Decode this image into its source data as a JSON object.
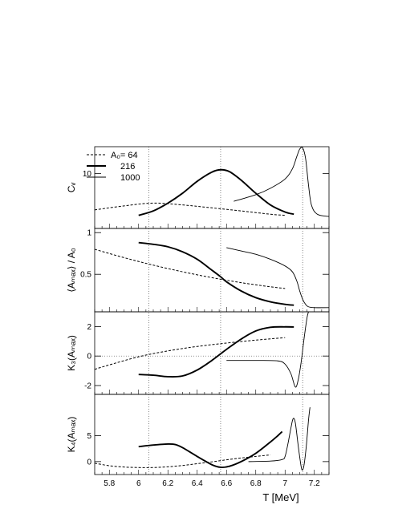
{
  "chart_data": {
    "type": "line",
    "x_axis": {
      "label": "T [MeV]",
      "range": [
        5.7,
        7.3
      ],
      "ticks": [
        5.8,
        6.0,
        6.2,
        6.4,
        6.6,
        6.8,
        7.0,
        7.2
      ],
      "tick_labels": [
        "5.8",
        "6",
        "6.2",
        "6.4",
        "6.6",
        "6.8",
        "7",
        "7.2"
      ]
    },
    "vertical_guides": [
      6.07,
      6.56,
      7.12
    ],
    "legend": {
      "placement": "top-left",
      "entries": [
        {
          "label": "A₀= 64",
          "style": "dashed",
          "series": "64"
        },
        {
          "label": "216",
          "style": "thick",
          "series": "216"
        },
        {
          "label": "1000",
          "style": "thin",
          "series": "1000"
        }
      ]
    },
    "panels": [
      {
        "ylabel": "Cᵥ",
        "yrange": [
          3.4,
          17
        ],
        "yscale": "log",
        "ticks": [
          10
        ],
        "tick_labels": [
          "10"
        ],
        "zero_line": false,
        "series": [
          {
            "name": "64",
            "style": "dashed",
            "points": [
              [
                5.7,
                4.9
              ],
              [
                5.9,
                5.3
              ],
              [
                6.1,
                5.6
              ],
              [
                6.3,
                5.4
              ],
              [
                6.5,
                5.1
              ],
              [
                6.7,
                4.8
              ],
              [
                6.9,
                4.5
              ],
              [
                7.0,
                4.4
              ]
            ]
          },
          {
            "name": "216",
            "style": "thick",
            "points": [
              [
                6.0,
                4.4
              ],
              [
                6.1,
                4.8
              ],
              [
                6.2,
                5.6
              ],
              [
                6.3,
                6.8
              ],
              [
                6.4,
                8.6
              ],
              [
                6.5,
                10.3
              ],
              [
                6.56,
                10.8
              ],
              [
                6.62,
                10.4
              ],
              [
                6.7,
                8.8
              ],
              [
                6.8,
                6.8
              ],
              [
                6.9,
                5.4
              ],
              [
                7.0,
                4.7
              ],
              [
                7.06,
                4.5
              ]
            ]
          },
          {
            "name": "1000",
            "style": "thin",
            "points": [
              [
                6.65,
                5.8
              ],
              [
                6.8,
                6.6
              ],
              [
                6.9,
                7.5
              ],
              [
                7.0,
                9.0
              ],
              [
                7.05,
                11.0
              ],
              [
                7.08,
                14.0
              ],
              [
                7.1,
                16.2
              ],
              [
                7.12,
                16.6
              ],
              [
                7.14,
                13.5
              ],
              [
                7.16,
                8.0
              ],
              [
                7.18,
                5.4
              ],
              [
                7.22,
                4.5
              ],
              [
                7.3,
                4.3
              ]
            ]
          }
        ]
      },
      {
        "ylabel": "⟨Aₘₐₓ⟩ / A₀",
        "yrange": [
          0.05,
          1.05
        ],
        "yscale": "linear",
        "ticks": [
          0.5,
          1
        ],
        "tick_labels": [
          "0.5",
          "1"
        ],
        "zero_line": false,
        "series": [
          {
            "name": "64",
            "style": "dashed",
            "points": [
              [
                5.7,
                0.8
              ],
              [
                5.9,
                0.7
              ],
              [
                6.1,
                0.61
              ],
              [
                6.3,
                0.53
              ],
              [
                6.5,
                0.46
              ],
              [
                6.7,
                0.4
              ],
              [
                6.9,
                0.35
              ],
              [
                7.0,
                0.33
              ]
            ]
          },
          {
            "name": "216",
            "style": "thick",
            "points": [
              [
                6.0,
                0.88
              ],
              [
                6.1,
                0.86
              ],
              [
                6.2,
                0.83
              ],
              [
                6.3,
                0.77
              ],
              [
                6.4,
                0.68
              ],
              [
                6.5,
                0.55
              ],
              [
                6.56,
                0.47
              ],
              [
                6.6,
                0.41
              ],
              [
                6.7,
                0.3
              ],
              [
                6.8,
                0.22
              ],
              [
                6.9,
                0.17
              ],
              [
                7.0,
                0.14
              ],
              [
                7.06,
                0.13
              ]
            ]
          },
          {
            "name": "1000",
            "style": "thin",
            "points": [
              [
                6.6,
                0.82
              ],
              [
                6.7,
                0.78
              ],
              [
                6.8,
                0.74
              ],
              [
                6.9,
                0.68
              ],
              [
                7.0,
                0.6
              ],
              [
                7.05,
                0.53
              ],
              [
                7.08,
                0.42
              ],
              [
                7.1,
                0.3
              ],
              [
                7.12,
                0.2
              ],
              [
                7.14,
                0.14
              ],
              [
                7.16,
                0.11
              ],
              [
                7.2,
                0.1
              ],
              [
                7.3,
                0.1
              ]
            ]
          }
        ]
      },
      {
        "ylabel": "K₃(Aₘₐₓ)",
        "yrange": [
          -2.6,
          3.0
        ],
        "yscale": "linear",
        "ticks": [
          -2,
          0,
          2
        ],
        "tick_labels": [
          "-2",
          "0",
          "2"
        ],
        "zero_line": true,
        "series": [
          {
            "name": "64",
            "style": "dashed",
            "points": [
              [
                5.7,
                -0.9
              ],
              [
                5.8,
                -0.6
              ],
              [
                6.0,
                -0.05
              ],
              [
                6.2,
                0.35
              ],
              [
                6.4,
                0.65
              ],
              [
                6.6,
                0.88
              ],
              [
                6.8,
                1.08
              ],
              [
                7.0,
                1.25
              ]
            ]
          },
          {
            "name": "216",
            "style": "thick",
            "points": [
              [
                6.0,
                -1.25
              ],
              [
                6.1,
                -1.3
              ],
              [
                6.2,
                -1.4
              ],
              [
                6.3,
                -1.35
              ],
              [
                6.4,
                -0.95
              ],
              [
                6.5,
                -0.3
              ],
              [
                6.6,
                0.45
              ],
              [
                6.7,
                1.15
              ],
              [
                6.8,
                1.7
              ],
              [
                6.9,
                1.95
              ],
              [
                7.0,
                1.98
              ],
              [
                7.06,
                1.97
              ]
            ]
          },
          {
            "name": "1000",
            "style": "thin",
            "points": [
              [
                6.6,
                -0.3
              ],
              [
                6.8,
                -0.3
              ],
              [
                6.95,
                -0.33
              ],
              [
                7.0,
                -0.55
              ],
              [
                7.04,
                -1.2
              ],
              [
                7.07,
                -2.1
              ],
              [
                7.09,
                -1.6
              ],
              [
                7.11,
                -0.4
              ],
              [
                7.13,
                1.2
              ],
              [
                7.15,
                2.6
              ],
              [
                7.16,
                3.0
              ]
            ]
          }
        ]
      },
      {
        "ylabel": "K₄(Aₘₐₓ)",
        "yrange": [
          -2.5,
          13
        ],
        "yscale": "linear",
        "ticks": [
          0,
          5
        ],
        "tick_labels": [
          "0",
          "5"
        ],
        "zero_line": false,
        "series": [
          {
            "name": "64",
            "style": "dashed",
            "points": [
              [
                5.7,
                -0.3
              ],
              [
                5.8,
                -0.8
              ],
              [
                5.9,
                -1.05
              ],
              [
                6.0,
                -1.15
              ],
              [
                6.1,
                -1.15
              ],
              [
                6.2,
                -1.0
              ],
              [
                6.3,
                -0.75
              ],
              [
                6.4,
                -0.4
              ],
              [
                6.5,
                -0.05
              ],
              [
                6.6,
                0.35
              ],
              [
                6.7,
                0.7
              ],
              [
                6.8,
                1.0
              ],
              [
                6.9,
                1.3
              ]
            ]
          },
          {
            "name": "216",
            "style": "thick",
            "points": [
              [
                6.0,
                2.9
              ],
              [
                6.1,
                3.2
              ],
              [
                6.2,
                3.4
              ],
              [
                6.25,
                3.3
              ],
              [
                6.3,
                2.7
              ],
              [
                6.4,
                1.0
              ],
              [
                6.5,
                -0.6
              ],
              [
                6.56,
                -1.1
              ],
              [
                6.62,
                -0.9
              ],
              [
                6.7,
                0.0
              ],
              [
                6.8,
                1.6
              ],
              [
                6.9,
                3.8
              ],
              [
                6.95,
                5.0
              ],
              [
                6.98,
                5.8
              ]
            ]
          },
          {
            "name": "1000",
            "style": "thin",
            "points": [
              [
                6.75,
                0.0
              ],
              [
                6.9,
                0.1
              ],
              [
                6.98,
                0.4
              ],
              [
                7.0,
                1.0
              ],
              [
                7.02,
                3.5
              ],
              [
                7.04,
                6.5
              ],
              [
                7.055,
                8.3
              ],
              [
                7.07,
                7.5
              ],
              [
                7.09,
                3.0
              ],
              [
                7.11,
                -1.0
              ],
              [
                7.12,
                -1.6
              ],
              [
                7.13,
                -0.6
              ],
              [
                7.145,
                3.0
              ],
              [
                7.16,
                8.0
              ],
              [
                7.17,
                10.5
              ]
            ]
          }
        ]
      }
    ]
  }
}
